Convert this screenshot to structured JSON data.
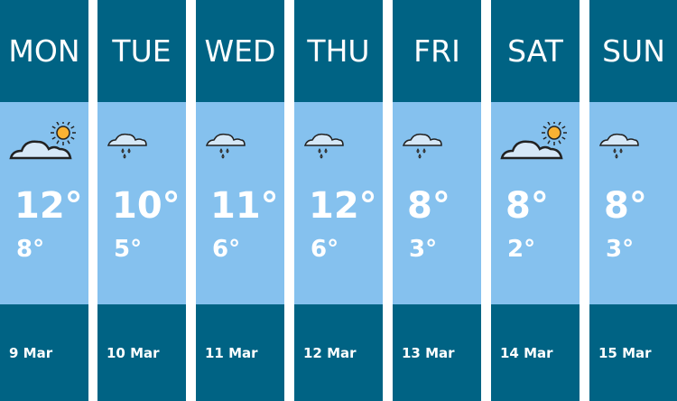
{
  "days": [
    {
      "day": "MON",
      "icon": "sun-cloud-icon",
      "high": "12°",
      "low": "8°",
      "date": "9 Mar"
    },
    {
      "day": "TUE",
      "icon": "rain-cloud-icon",
      "high": "10°",
      "low": "5°",
      "date": "10 Mar"
    },
    {
      "day": "WED",
      "icon": "rain-cloud-icon",
      "high": "11°",
      "low": "6°",
      "date": "11 Mar"
    },
    {
      "day": "THU",
      "icon": "rain-cloud-icon",
      "high": "12°",
      "low": "6°",
      "date": "12 Mar"
    },
    {
      "day": "FRI",
      "icon": "rain-cloud-icon",
      "high": "8°",
      "low": "3°",
      "date": "13 Mar"
    },
    {
      "day": "SAT",
      "icon": "sun-cloud-icon",
      "high": "8°",
      "low": "2°",
      "date": "14 Mar"
    },
    {
      "day": "SUN",
      "icon": "rain-cloud-icon",
      "high": "8°",
      "low": "3°",
      "date": "15 Mar"
    }
  ],
  "colors": {
    "header": "#006384",
    "body": "#85c1ee",
    "sun": "#f9b233"
  }
}
